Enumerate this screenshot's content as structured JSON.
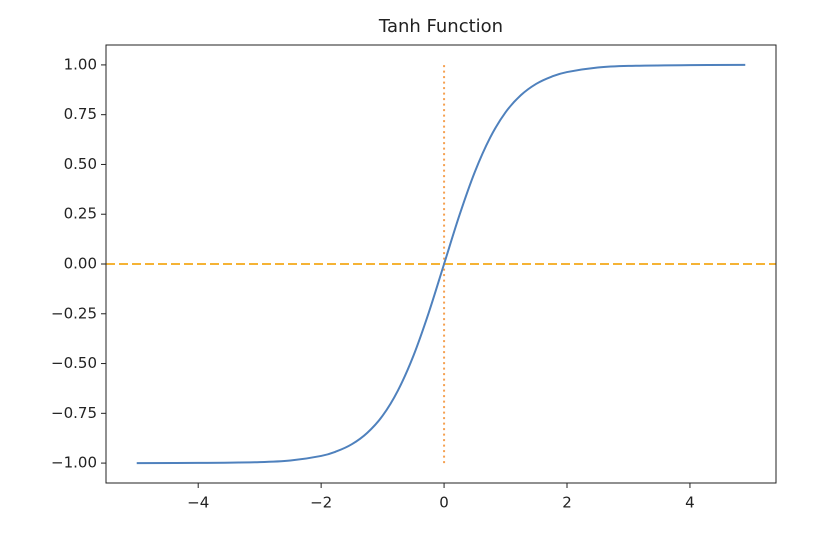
{
  "chart_data": {
    "type": "line",
    "title": "Tanh Function",
    "x": [
      -5,
      -4,
      -3,
      -2.5,
      -2,
      -1.75,
      -1.5,
      -1.25,
      -1,
      -0.75,
      -0.5,
      -0.25,
      0,
      0.25,
      0.5,
      0.75,
      1,
      1.25,
      1.5,
      1.75,
      2,
      2.5,
      3,
      4,
      4.9
    ],
    "series": [
      {
        "color": "#4f81bd",
        "values": [
          -1.0,
          -0.999,
          -0.995,
          -0.987,
          -0.964,
          -0.941,
          -0.905,
          -0.848,
          -0.762,
          -0.635,
          -0.462,
          -0.245,
          0,
          0.245,
          0.462,
          0.635,
          0.762,
          0.848,
          0.905,
          0.941,
          0.964,
          0.987,
          0.995,
          0.999,
          1.0
        ]
      }
    ],
    "reference_lines": [
      {
        "orientation": "horizontal",
        "value": 0,
        "color": "#f5b335",
        "style": "dashed"
      },
      {
        "orientation": "vertical",
        "value": 0,
        "ymin": -1,
        "ymax": 1,
        "color": "#f5a050",
        "style": "dotted"
      }
    ],
    "xlim": [
      -5.5,
      5.4
    ],
    "ylim": [
      -1.1,
      1.1
    ],
    "xticks": [
      {
        "value": -4,
        "label": "−4"
      },
      {
        "value": -2,
        "label": "−2"
      },
      0,
      2,
      4
    ],
    "yticks": [
      {
        "value": -1,
        "label": "−1.00"
      },
      {
        "value": -0.75,
        "label": "−0.75"
      },
      {
        "value": -0.5,
        "label": "−0.50"
      },
      {
        "value": -0.25,
        "label": "−0.25"
      },
      {
        "value": 0,
        "label": "0.00"
      },
      {
        "value": 0.25,
        "label": "0.25"
      },
      {
        "value": 0.5,
        "label": "0.50"
      },
      {
        "value": 0.75,
        "label": "0.75"
      },
      {
        "value": 1,
        "label": "1.00"
      }
    ]
  }
}
